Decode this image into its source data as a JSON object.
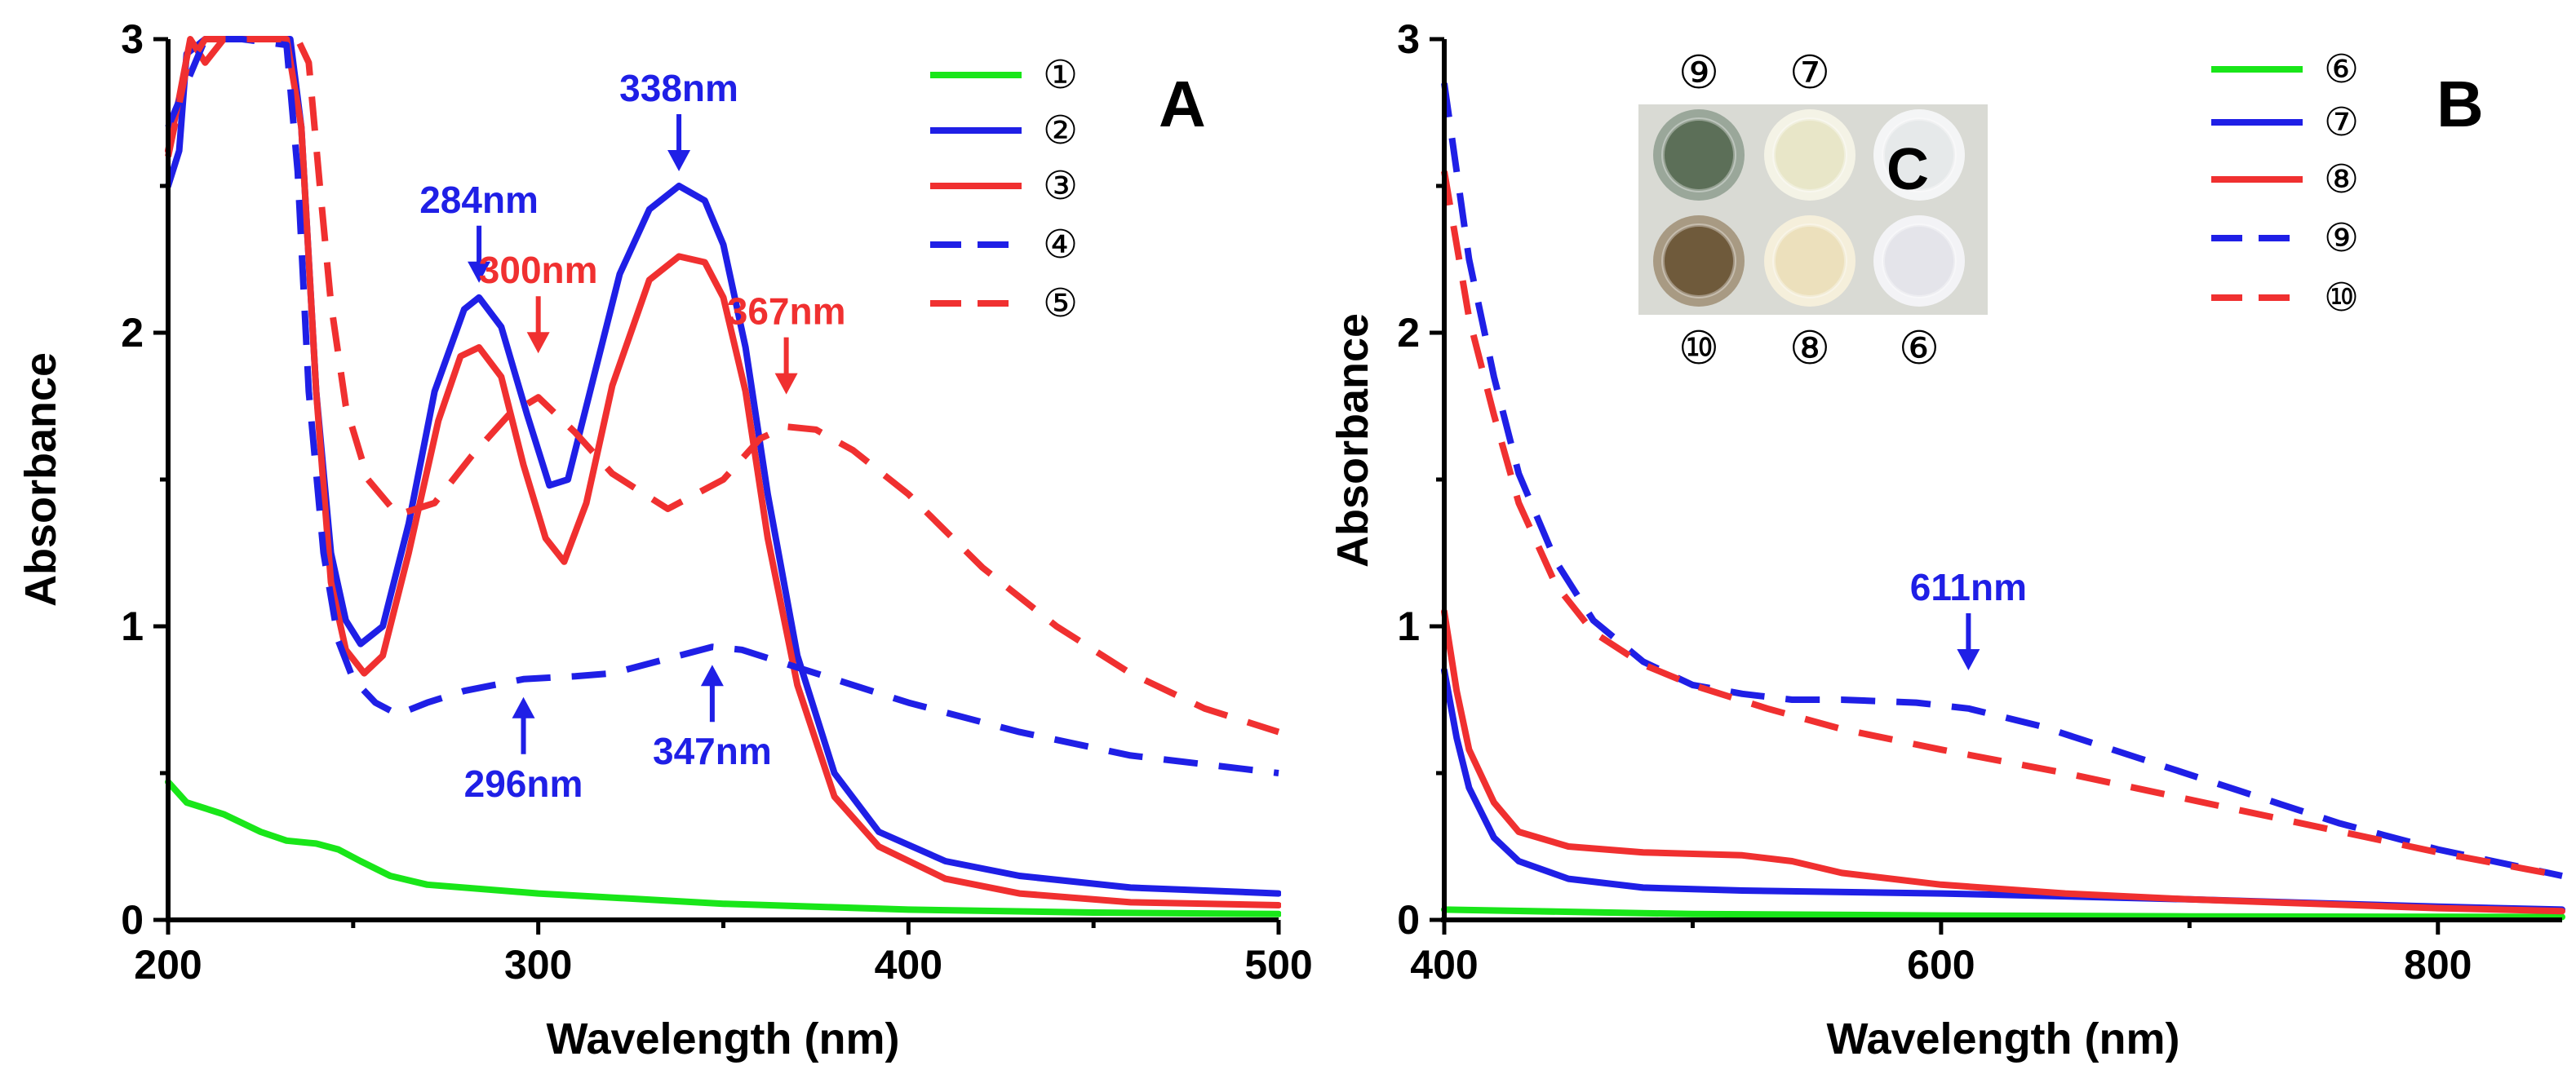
{
  "colors": {
    "green": "#19e619",
    "blue": "#1f1fe6",
    "red": "#f03030",
    "axis": "#000000"
  },
  "chart_data": [
    {
      "type": "line",
      "panel_label": "A",
      "xlabel": "Wavelength (nm)",
      "ylabel": "Absorbance",
      "xlim": [
        200,
        500
      ],
      "ylim": [
        0,
        3
      ],
      "x_ticks": [
        "200",
        "300",
        "400",
        "500"
      ],
      "y_ticks": [
        "0",
        "1",
        "2",
        "3"
      ],
      "series": [
        {
          "name": "①",
          "color": "green",
          "style": "solid",
          "points": [
            [
              200,
              0.47
            ],
            [
              205,
              0.4
            ],
            [
              215,
              0.36
            ],
            [
              225,
              0.3
            ],
            [
              232,
              0.27
            ],
            [
              240,
              0.26
            ],
            [
              246,
              0.24
            ],
            [
              252,
              0.2
            ],
            [
              260,
              0.15
            ],
            [
              270,
              0.12
            ],
            [
              300,
              0.09
            ],
            [
              350,
              0.055
            ],
            [
              400,
              0.035
            ],
            [
              450,
              0.025
            ],
            [
              500,
              0.02
            ]
          ]
        },
        {
          "name": "②",
          "color": "blue",
          "style": "solid",
          "points": [
            [
              200,
              2.5
            ],
            [
              203,
              2.62
            ],
            [
              205,
              2.95
            ],
            [
              210,
              3.0
            ],
            [
              225,
              3.0
            ],
            [
              233,
              3.0
            ],
            [
              236,
              2.7
            ],
            [
              240,
              1.8
            ],
            [
              244,
              1.25
            ],
            [
              248,
              1.02
            ],
            [
              252,
              0.94
            ],
            [
              258,
              1.0
            ],
            [
              265,
              1.35
            ],
            [
              272,
              1.8
            ],
            [
              280,
              2.08
            ],
            [
              284,
              2.12
            ],
            [
              290,
              2.02
            ],
            [
              297,
              1.72
            ],
            [
              303,
              1.48
            ],
            [
              308,
              1.5
            ],
            [
              315,
              1.85
            ],
            [
              322,
              2.2
            ],
            [
              330,
              2.42
            ],
            [
              338,
              2.5
            ],
            [
              345,
              2.45
            ],
            [
              350,
              2.3
            ],
            [
              356,
              1.95
            ],
            [
              362,
              1.45
            ],
            [
              370,
              0.9
            ],
            [
              380,
              0.5
            ],
            [
              392,
              0.3
            ],
            [
              410,
              0.2
            ],
            [
              430,
              0.15
            ],
            [
              460,
              0.11
            ],
            [
              500,
              0.09
            ]
          ]
        },
        {
          "name": "③",
          "color": "red",
          "style": "solid",
          "points": [
            [
              200,
              2.62
            ],
            [
              203,
              2.8
            ],
            [
              206,
              3.0
            ],
            [
              210,
              2.92
            ],
            [
              215,
              3.0
            ],
            [
              232,
              3.0
            ],
            [
              236,
              2.7
            ],
            [
              240,
              1.8
            ],
            [
              244,
              1.15
            ],
            [
              248,
              0.92
            ],
            [
              253,
              0.84
            ],
            [
              258,
              0.9
            ],
            [
              265,
              1.25
            ],
            [
              273,
              1.7
            ],
            [
              279,
              1.92
            ],
            [
              284,
              1.95
            ],
            [
              290,
              1.85
            ],
            [
              296,
              1.55
            ],
            [
              302,
              1.3
            ],
            [
              307,
              1.22
            ],
            [
              313,
              1.42
            ],
            [
              320,
              1.82
            ],
            [
              330,
              2.18
            ],
            [
              338,
              2.26
            ],
            [
              345,
              2.24
            ],
            [
              350,
              2.12
            ],
            [
              356,
              1.8
            ],
            [
              362,
              1.3
            ],
            [
              370,
              0.8
            ],
            [
              380,
              0.42
            ],
            [
              392,
              0.25
            ],
            [
              410,
              0.14
            ],
            [
              430,
              0.09
            ],
            [
              460,
              0.06
            ],
            [
              500,
              0.05
            ]
          ]
        },
        {
          "name": "④",
          "color": "blue",
          "style": "dashed",
          "points": [
            [
              200,
              2.7
            ],
            [
              205,
              2.85
            ],
            [
              210,
              3.0
            ],
            [
              220,
              3.0
            ],
            [
              232,
              2.98
            ],
            [
              235,
              2.55
            ],
            [
              238,
              1.8
            ],
            [
              242,
              1.25
            ],
            [
              246,
              0.95
            ],
            [
              250,
              0.82
            ],
            [
              256,
              0.74
            ],
            [
              262,
              0.7
            ],
            [
              270,
              0.74
            ],
            [
              280,
              0.78
            ],
            [
              296,
              0.82
            ],
            [
              310,
              0.83
            ],
            [
              320,
              0.84
            ],
            [
              335,
              0.89
            ],
            [
              347,
              0.93
            ],
            [
              355,
              0.92
            ],
            [
              370,
              0.86
            ],
            [
              400,
              0.74
            ],
            [
              430,
              0.64
            ],
            [
              460,
              0.56
            ],
            [
              500,
              0.5
            ]
          ]
        },
        {
          "name": "⑤",
          "color": "red",
          "style": "dashed",
          "points": [
            [
              200,
              2.6
            ],
            [
              205,
              2.9
            ],
            [
              210,
              3.0
            ],
            [
              235,
              3.0
            ],
            [
              238,
              2.92
            ],
            [
              241,
              2.5
            ],
            [
              244,
              2.1
            ],
            [
              248,
              1.75
            ],
            [
              254,
              1.5
            ],
            [
              262,
              1.38
            ],
            [
              272,
              1.42
            ],
            [
              282,
              1.58
            ],
            [
              292,
              1.72
            ],
            [
              300,
              1.78
            ],
            [
              310,
              1.66
            ],
            [
              320,
              1.52
            ],
            [
              335,
              1.4
            ],
            [
              350,
              1.5
            ],
            [
              360,
              1.64
            ],
            [
              367,
              1.68
            ],
            [
              375,
              1.67
            ],
            [
              385,
              1.6
            ],
            [
              400,
              1.45
            ],
            [
              420,
              1.2
            ],
            [
              440,
              1.0
            ],
            [
              460,
              0.84
            ],
            [
              480,
              0.72
            ],
            [
              500,
              0.64
            ]
          ]
        }
      ],
      "annotations": [
        {
          "text": "284nm",
          "color": "blue",
          "x": 284,
          "y": 2.12,
          "side": "above"
        },
        {
          "text": "338nm",
          "color": "blue",
          "x": 338,
          "y": 2.5,
          "side": "above"
        },
        {
          "text": "300nm",
          "color": "red",
          "x": 300,
          "y": 1.88,
          "side": "above"
        },
        {
          "text": "367nm",
          "color": "red",
          "x": 367,
          "y": 1.74,
          "side": "above"
        },
        {
          "text": "296nm",
          "color": "blue",
          "x": 296,
          "y": 0.82,
          "side": "below"
        },
        {
          "text": "347nm",
          "color": "blue",
          "x": 347,
          "y": 0.93,
          "side": "below"
        }
      ]
    },
    {
      "type": "line",
      "panel_label": "B",
      "xlabel": "Wavelength (nm)",
      "ylabel": "Absorbance",
      "xlim": [
        400,
        850
      ],
      "ylim": [
        0,
        3
      ],
      "x_ticks": [
        "400",
        "600",
        "800"
      ],
      "y_ticks": [
        "0",
        "1",
        "2",
        "3"
      ],
      "series": [
        {
          "name": "⑥",
          "color": "green",
          "style": "solid",
          "points": [
            [
              400,
              0.035
            ],
            [
              500,
              0.02
            ],
            [
              600,
              0.015
            ],
            [
              700,
              0.012
            ],
            [
              850,
              0.01
            ]
          ]
        },
        {
          "name": "⑦",
          "color": "blue",
          "style": "solid",
          "points": [
            [
              400,
              0.85
            ],
            [
              405,
              0.62
            ],
            [
              410,
              0.45
            ],
            [
              420,
              0.28
            ],
            [
              430,
              0.2
            ],
            [
              450,
              0.14
            ],
            [
              480,
              0.11
            ],
            [
              520,
              0.1
            ],
            [
              600,
              0.09
            ],
            [
              700,
              0.07
            ],
            [
              800,
              0.045
            ],
            [
              850,
              0.035
            ]
          ]
        },
        {
          "name": "⑧",
          "color": "red",
          "style": "solid",
          "points": [
            [
              400,
              1.05
            ],
            [
              405,
              0.78
            ],
            [
              410,
              0.58
            ],
            [
              420,
              0.4
            ],
            [
              430,
              0.3
            ],
            [
              450,
              0.25
            ],
            [
              480,
              0.23
            ],
            [
              520,
              0.22
            ],
            [
              540,
              0.2
            ],
            [
              560,
              0.16
            ],
            [
              600,
              0.12
            ],
            [
              650,
              0.09
            ],
            [
              700,
              0.07
            ],
            [
              800,
              0.04
            ],
            [
              850,
              0.03
            ]
          ]
        },
        {
          "name": "⑨",
          "color": "blue",
          "style": "dashed",
          "points": [
            [
              400,
              2.85
            ],
            [
              405,
              2.55
            ],
            [
              410,
              2.25
            ],
            [
              420,
              1.85
            ],
            [
              430,
              1.52
            ],
            [
              445,
              1.22
            ],
            [
              460,
              1.02
            ],
            [
              480,
              0.88
            ],
            [
              500,
              0.8
            ],
            [
              520,
              0.77
            ],
            [
              540,
              0.75
            ],
            [
              560,
              0.75
            ],
            [
              590,
              0.74
            ],
            [
              611,
              0.72
            ],
            [
              640,
              0.66
            ],
            [
              680,
              0.55
            ],
            [
              720,
              0.44
            ],
            [
              760,
              0.33
            ],
            [
              800,
              0.24
            ],
            [
              850,
              0.15
            ]
          ]
        },
        {
          "name": "⑩",
          "color": "red",
          "style": "dashed",
          "points": [
            [
              400,
              2.55
            ],
            [
              405,
              2.3
            ],
            [
              410,
              2.05
            ],
            [
              420,
              1.72
            ],
            [
              430,
              1.42
            ],
            [
              445,
              1.14
            ],
            [
              460,
              0.98
            ],
            [
              480,
              0.87
            ],
            [
              500,
              0.8
            ],
            [
              530,
              0.72
            ],
            [
              560,
              0.65
            ],
            [
              600,
              0.58
            ],
            [
              650,
              0.5
            ],
            [
              700,
              0.41
            ],
            [
              750,
              0.32
            ],
            [
              800,
              0.23
            ],
            [
              850,
              0.15
            ]
          ]
        }
      ],
      "annotations": [
        {
          "text": "611nm",
          "color": "blue",
          "x": 611,
          "y": 0.8,
          "side": "above"
        }
      ],
      "inset": {
        "label": "C",
        "top_labels": [
          "⑨",
          "⑦"
        ],
        "bottom_labels": [
          "⑩",
          "⑧",
          "⑥"
        ],
        "wells": [
          {
            "fill": "#5c6f58",
            "rim": "#9aa79a"
          },
          {
            "fill": "#e8e6c8",
            "rim": "#f4f3e6"
          },
          {
            "fill": "#e6e9ea",
            "rim": "#f4f5f6"
          },
          {
            "fill": "#6f5a3b",
            "rim": "#a89a83"
          },
          {
            "fill": "#ece0bc",
            "rim": "#f5efdb"
          },
          {
            "fill": "#e4e4ea",
            "rim": "#f3f3f6"
          }
        ]
      }
    }
  ]
}
